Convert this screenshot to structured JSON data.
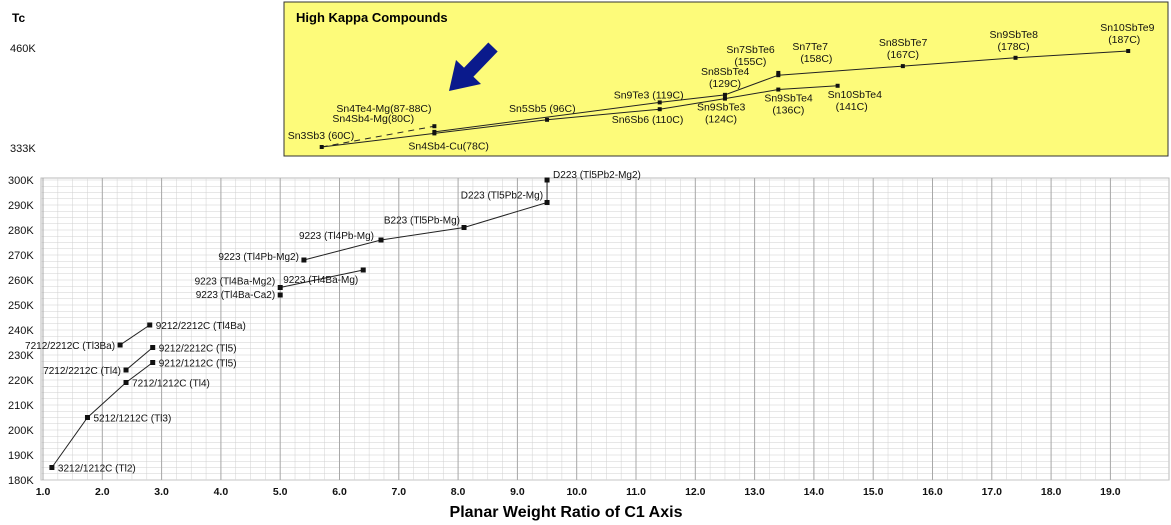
{
  "chart_data": {
    "type": "line",
    "ylabel": "Tc",
    "xlabel": "Planar Weight Ratio of C1 Axis",
    "xlim": [
      1.0,
      19.5
    ],
    "ylim": [
      180,
      300
    ],
    "x_ticks": [
      "1.0",
      "2.0",
      "3.0",
      "4.0",
      "5.0",
      "6.0",
      "7.0",
      "8.0",
      "9.0",
      "10.0",
      "11.0",
      "12.0",
      "13.0",
      "14.0",
      "15.0",
      "16.0",
      "17.0",
      "18.0",
      "19.0"
    ],
    "y_ticks": [
      "300K",
      "290K",
      "280K",
      "270K",
      "260K",
      "250K",
      "240K",
      "230K",
      "220K",
      "210K",
      "200K",
      "190K",
      "180K"
    ],
    "grid": true,
    "points": [
      {
        "label": "3212/1212C (Tl2)",
        "x": 1.15,
        "y": 185
      },
      {
        "label": "5212/1212C (Tl3)",
        "x": 1.75,
        "y": 205
      },
      {
        "label": "7212/1212C (Tl4)",
        "x": 2.4,
        "y": 219
      },
      {
        "label": "9212/1212C (Tl5)",
        "x": 2.85,
        "y": 227
      },
      {
        "label": "7212/2212C (Tl4)",
        "x": 2.4,
        "y": 224
      },
      {
        "label": "9212/2212C (Tl5)",
        "x": 2.85,
        "y": 233
      },
      {
        "label": "7212/2212C (Tl3Ba)",
        "x": 2.3,
        "y": 234
      },
      {
        "label": "9212/2212C (Tl4Ba)",
        "x": 2.8,
        "y": 242
      },
      {
        "label": "9223 (Tl4Ba-Ca2)",
        "x": 5.0,
        "y": 254
      },
      {
        "label": "9223 (Tl4Ba-Mg2)",
        "x": 5.0,
        "y": 257
      },
      {
        "label": "9223 (Tl4Ba-Mg)",
        "x": 6.4,
        "y": 264
      },
      {
        "label": "9223 (Tl4Pb-Mg2)",
        "x": 5.4,
        "y": 268
      },
      {
        "label": "9223 (Tl4Pb-Mg)",
        "x": 6.7,
        "y": 276
      },
      {
        "label": "B223 (Tl5Pb-Mg)",
        "x": 8.1,
        "y": 281
      },
      {
        "label": "D223 (Tl5Pb2-Mg)",
        "x": 9.5,
        "y": 291
      },
      {
        "label": "D223 (Tl5Pb2-Mg2)",
        "x": 9.5,
        "y": 300
      }
    ],
    "lines": [
      [
        "3212/1212C (Tl2)",
        "5212/1212C (Tl3)",
        "7212/1212C (Tl4)",
        "9212/1212C (Tl5)"
      ],
      [
        "7212/2212C (Tl4)",
        "9212/2212C (Tl5)"
      ],
      [
        "7212/2212C (Tl3Ba)",
        "9212/2212C (Tl4Ba)"
      ],
      [
        "9223 (Tl4Ba-Mg2)",
        "9223 (Tl4Ba-Mg)"
      ],
      [
        "9223 (Tl4Pb-Mg2)",
        "9223 (Tl4Pb-Mg)",
        "B223 (Tl5Pb-Mg)",
        "D223 (Tl5Pb2-Mg)"
      ],
      [
        "D223 (Tl5Pb2-Mg)",
        "D223 (Tl5Pb2-Mg2)"
      ]
    ],
    "inset": {
      "title": "High Kappa Compounds",
      "ylim_labels": [
        "460K",
        "333K"
      ],
      "points": [
        {
          "label": "Sn3Sb3 (60C)",
          "x": 5.7,
          "y": 60
        },
        {
          "label": "Sn4Sb4-Cu(78C)",
          "x": 7.6,
          "y": 78
        },
        {
          "label": "Sn4Sb4-Mg(80C)",
          "x": 7.6,
          "y": 80
        },
        {
          "label": "Sn4Te4-Mg(87-88C)",
          "x": 7.6,
          "y": 87.5
        },
        {
          "label": "Sn5Sb5 (96C)",
          "x": 9.5,
          "y": 96
        },
        {
          "label": "Sn6Sb6 (110C)",
          "x": 11.4,
          "y": 110
        },
        {
          "label": "Sn9Te3 (119C)",
          "x": 11.4,
          "y": 119
        },
        {
          "label": "Sn9SbTe3 (124C)",
          "x": 12.5,
          "y": 124
        },
        {
          "label": "Sn8SbTe4 (129C)",
          "x": 12.5,
          "y": 129
        },
        {
          "label": "Sn9SbTe4 (136C)",
          "x": 13.4,
          "y": 136
        },
        {
          "label": "Sn10SbTe4 (141C)",
          "x": 14.4,
          "y": 141
        },
        {
          "label": "Sn7SbTe6 (155C)",
          "x": 13.4,
          "y": 155
        },
        {
          "label": "Sn7Te7 (158C)",
          "x": 13.4,
          "y": 158
        },
        {
          "label": "Sn8SbTe7 (167C)",
          "x": 15.5,
          "y": 167
        },
        {
          "label": "Sn9SbTe8 (178C)",
          "x": 17.4,
          "y": 178
        },
        {
          "label": "Sn10SbTe9 (187C)",
          "x": 19.3,
          "y": 187
        }
      ]
    }
  }
}
